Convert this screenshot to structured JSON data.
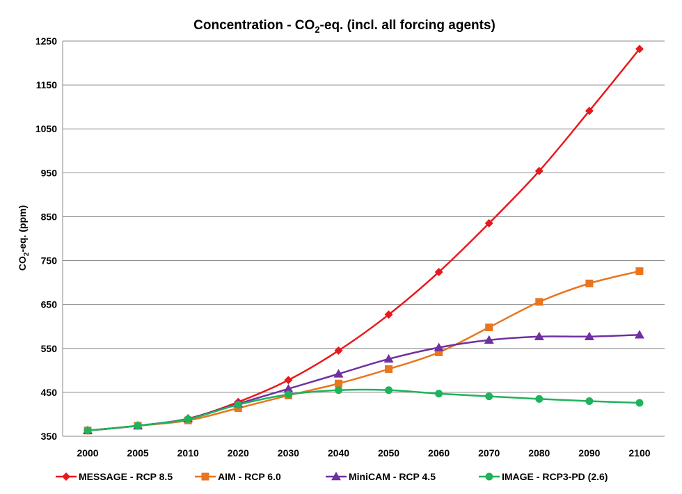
{
  "chart_data": {
    "type": "line",
    "title_parts": [
      "Concentration - CO",
      "2",
      "-eq. (incl. all forcing agents)"
    ],
    "ylabel_parts": [
      "CO",
      "2",
      "-eq. (ppm)"
    ],
    "xlabel": "",
    "categories": [
      "2000",
      "2005",
      "2010",
      "2020",
      "2030",
      "2040",
      "2050",
      "2060",
      "2070",
      "2080",
      "2090",
      "2100"
    ],
    "ylim": [
      350,
      1250
    ],
    "yticks": [
      350,
      450,
      550,
      650,
      750,
      850,
      950,
      1050,
      1150,
      1250
    ],
    "grid": "horizontal",
    "legend_position": "bottom",
    "series": [
      {
        "name": "MESSAGE - RCP 8.5",
        "color": "#e8191c",
        "marker": "diamond",
        "values": [
          363,
          374,
          390,
          428,
          478,
          545,
          627,
          724,
          835,
          954,
          1091,
          1232
        ]
      },
      {
        "name": "AIM - RCP 6.0",
        "color": "#e8761f",
        "marker": "square",
        "values": [
          363,
          374,
          386,
          414,
          443,
          470,
          503,
          541,
          598,
          656,
          698,
          726
        ]
      },
      {
        "name": "MiniCAM - RCP 4.5",
        "color": "#7030a0",
        "marker": "triangle",
        "values": [
          363,
          374,
          390,
          424,
          458,
          492,
          526,
          552,
          569,
          577,
          577,
          581
        ]
      },
      {
        "name": "IMAGE - RCP3-PD (2.6)",
        "color": "#1fb35b",
        "marker": "circle",
        "values": [
          363,
          374,
          389,
          422,
          445,
          455,
          455,
          447,
          441,
          435,
          430,
          426
        ]
      }
    ]
  }
}
